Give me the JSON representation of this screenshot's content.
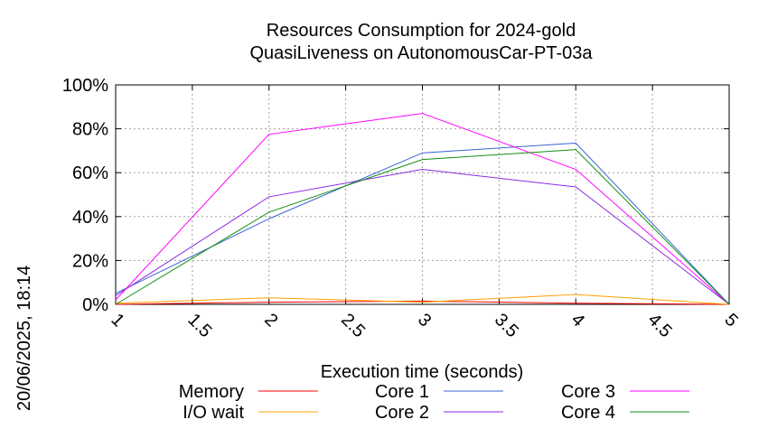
{
  "chart_data": {
    "type": "line",
    "title": "Resources Consumption for 2024-gold",
    "subtitle": "QuasiLiveness on AutonomousCar-PT-03a",
    "xlabel": "Execution time (seconds)",
    "ylabel": "",
    "side_label": "20/06/2025, 18:14",
    "xlim": [
      1,
      5
    ],
    "ylim": [
      0,
      100
    ],
    "x_ticks": [
      "1",
      "1.5",
      "2",
      "2.5",
      "3",
      "3.5",
      "4",
      "4.5",
      "5"
    ],
    "y_ticks": [
      "0%",
      "20%",
      "40%",
      "60%",
      "80%",
      "100%"
    ],
    "grid": true,
    "legend_position": "bottom",
    "x": [
      1,
      2,
      3,
      4,
      5
    ],
    "series": [
      {
        "name": "Memory",
        "color": "#ff0000",
        "values": [
          0,
          1,
          1.5,
          0.5,
          0
        ]
      },
      {
        "name": "I/O wait",
        "color": "#ffa000",
        "values": [
          0.5,
          3,
          1,
          4.5,
          0
        ]
      },
      {
        "name": "Core 1",
        "color": "#3c64d2",
        "values": [
          5,
          39,
          69,
          73.5,
          0
        ]
      },
      {
        "name": "Core 2",
        "color": "#8a2be2",
        "values": [
          4,
          49,
          61.5,
          53.5,
          0
        ]
      },
      {
        "name": "Core 3",
        "color": "#ff00ff",
        "values": [
          2,
          77.5,
          87,
          61.5,
          0
        ]
      },
      {
        "name": "Core 4",
        "color": "#109010",
        "values": [
          0,
          42,
          66,
          70.5,
          0
        ]
      }
    ]
  }
}
